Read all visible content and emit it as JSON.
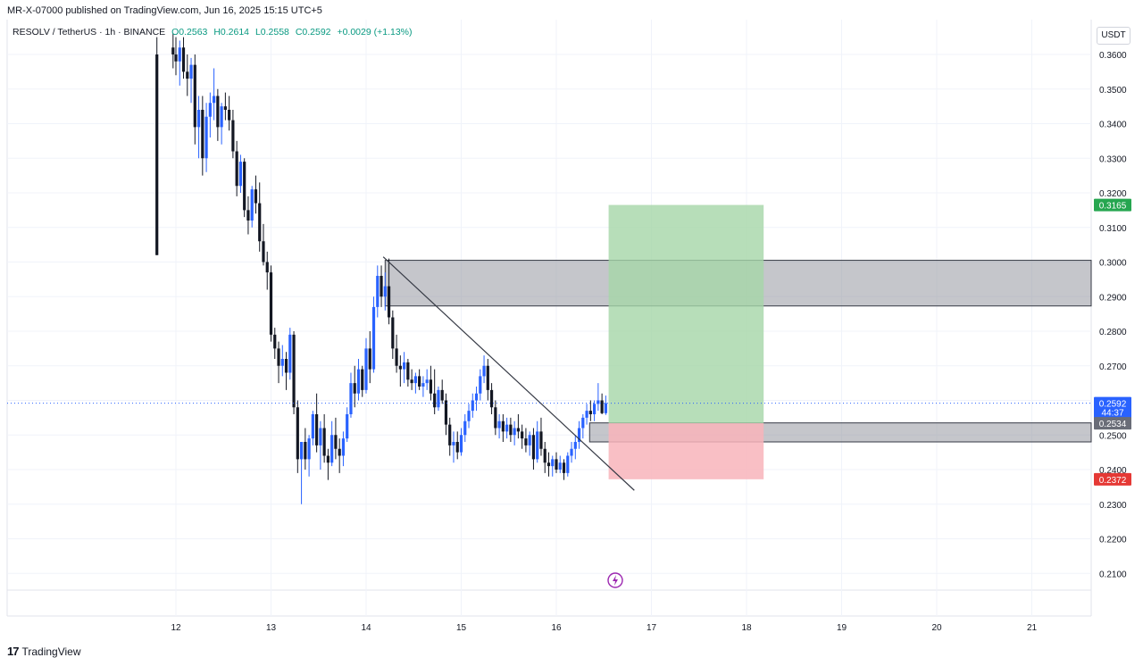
{
  "header": {
    "published": "MR-X-07000 published on TradingView.com, Jun 16, 2025 15:15 UTC+5",
    "symbol": "RESOLV / TetherUS · 1h · BINANCE",
    "open": "O0.2563",
    "high": "H0.2614",
    "low": "L0.2558",
    "close": "C0.2592",
    "change": "+0.0029 (+1.13%)",
    "currency": "USDT"
  },
  "footer": {
    "brand": "TradingView",
    "logo_glyph": "17"
  },
  "colors": {
    "up": "#2962ff",
    "down": "#131722",
    "target_zone": "#a5d6a7",
    "stop_zone": "#f8b4bb",
    "gray_zone": "#9598a1",
    "price_tag_blue": "#2962ff",
    "price_tag_green": "#26a650",
    "price_tag_red": "#e53935",
    "price_tag_gray": "#6a6d78"
  },
  "chart_data": {
    "type": "candlestick",
    "x_ticks": [
      "12",
      "13",
      "14",
      "15",
      "16",
      "17",
      "18",
      "19",
      "20",
      "21"
    ],
    "y_ticks": [
      "0.3600",
      "0.3500",
      "0.3400",
      "0.3300",
      "0.3200",
      "0.3100",
      "0.3000",
      "0.2900",
      "0.2800",
      "0.2700",
      "0.2600",
      "0.2500",
      "0.2400",
      "0.2300",
      "0.2200",
      "0.2100"
    ],
    "ylim": [
      0.205,
      0.364
    ],
    "price_labels": [
      {
        "value": 0.3165,
        "text": "0.3165",
        "kind": "target"
      },
      {
        "value": 0.2592,
        "text": "0.2592",
        "sub": "44:37",
        "kind": "last"
      },
      {
        "value": 0.2534,
        "text": "0.2534",
        "kind": "entry"
      },
      {
        "value": 0.2372,
        "text": "0.2372",
        "kind": "stop"
      }
    ],
    "zones": [
      {
        "name": "supply-zone",
        "from_day": 14.2,
        "to_day": 22.0,
        "top": 0.3005,
        "bottom": 0.2873
      },
      {
        "name": "entry-zone",
        "from_day": 16.35,
        "to_day": 22.0,
        "top": 0.2535,
        "bottom": 0.248
      }
    ],
    "position": {
      "from_day": 16.55,
      "to_day": 18.18,
      "target": 0.3165,
      "entry": 0.2534,
      "stop": 0.2372
    },
    "trendline": {
      "from": [
        14.18,
        0.3015
      ],
      "to": [
        16.82,
        0.234
      ]
    },
    "candles": [
      [
        11.8,
        0.36,
        0.365,
        0.302,
        0.302
      ],
      [
        11.97,
        0.362,
        0.366,
        0.356,
        0.36
      ],
      [
        12.0,
        0.36,
        0.365,
        0.354,
        0.358
      ],
      [
        12.04,
        0.358,
        0.364,
        0.351,
        0.362
      ],
      [
        12.08,
        0.362,
        0.365,
        0.353,
        0.355
      ],
      [
        12.12,
        0.355,
        0.36,
        0.348,
        0.353
      ],
      [
        12.16,
        0.353,
        0.359,
        0.346,
        0.357
      ],
      [
        12.2,
        0.357,
        0.36,
        0.334,
        0.339
      ],
      [
        12.24,
        0.339,
        0.348,
        0.33,
        0.344
      ],
      [
        12.28,
        0.344,
        0.348,
        0.325,
        0.33
      ],
      [
        12.32,
        0.33,
        0.346,
        0.326,
        0.342
      ],
      [
        12.36,
        0.342,
        0.349,
        0.336,
        0.346
      ],
      [
        12.4,
        0.346,
        0.356,
        0.341,
        0.348
      ],
      [
        12.44,
        0.348,
        0.35,
        0.335,
        0.339
      ],
      [
        12.48,
        0.339,
        0.346,
        0.334,
        0.345
      ],
      [
        12.52,
        0.345,
        0.349,
        0.341,
        0.344
      ],
      [
        12.56,
        0.344,
        0.348,
        0.338,
        0.341
      ],
      [
        12.6,
        0.341,
        0.344,
        0.33,
        0.332
      ],
      [
        12.64,
        0.332,
        0.335,
        0.319,
        0.322
      ],
      [
        12.68,
        0.322,
        0.331,
        0.32,
        0.329
      ],
      [
        12.72,
        0.329,
        0.33,
        0.313,
        0.315
      ],
      [
        12.76,
        0.315,
        0.319,
        0.308,
        0.312
      ],
      [
        12.8,
        0.312,
        0.322,
        0.31,
        0.321
      ],
      [
        12.84,
        0.321,
        0.325,
        0.314,
        0.317
      ],
      [
        12.88,
        0.317,
        0.323,
        0.303,
        0.306
      ],
      [
        12.92,
        0.306,
        0.311,
        0.299,
        0.3
      ],
      [
        12.96,
        0.3,
        0.303,
        0.292,
        0.297
      ],
      [
        13.0,
        0.297,
        0.299,
        0.277,
        0.279
      ],
      [
        13.04,
        0.279,
        0.281,
        0.272,
        0.275
      ],
      [
        13.08,
        0.275,
        0.277,
        0.265,
        0.27
      ],
      [
        13.12,
        0.27,
        0.276,
        0.267,
        0.272
      ],
      [
        13.16,
        0.272,
        0.274,
        0.263,
        0.268
      ],
      [
        13.2,
        0.268,
        0.281,
        0.266,
        0.279
      ],
      [
        13.24,
        0.279,
        0.28,
        0.256,
        0.258
      ],
      [
        13.28,
        0.258,
        0.26,
        0.239,
        0.243
      ],
      [
        13.32,
        0.243,
        0.248,
        0.23,
        0.248
      ],
      [
        13.36,
        0.248,
        0.252,
        0.24,
        0.243
      ],
      [
        13.4,
        0.243,
        0.25,
        0.238,
        0.249
      ],
      [
        13.44,
        0.249,
        0.257,
        0.247,
        0.256
      ],
      [
        13.48,
        0.256,
        0.262,
        0.245,
        0.247
      ],
      [
        13.52,
        0.247,
        0.254,
        0.24,
        0.252
      ],
      [
        13.56,
        0.252,
        0.256,
        0.242,
        0.244
      ],
      [
        13.6,
        0.244,
        0.246,
        0.237,
        0.242
      ],
      [
        13.64,
        0.242,
        0.254,
        0.241,
        0.25
      ],
      [
        13.68,
        0.25,
        0.255,
        0.243,
        0.246
      ],
      [
        13.72,
        0.246,
        0.249,
        0.239,
        0.244
      ],
      [
        13.76,
        0.244,
        0.251,
        0.241,
        0.249
      ],
      [
        13.8,
        0.249,
        0.258,
        0.248,
        0.256
      ],
      [
        13.84,
        0.256,
        0.268,
        0.255,
        0.265
      ],
      [
        13.88,
        0.265,
        0.27,
        0.258,
        0.262
      ],
      [
        13.92,
        0.262,
        0.272,
        0.26,
        0.269
      ],
      [
        13.96,
        0.269,
        0.27,
        0.261,
        0.263
      ],
      [
        14.0,
        0.263,
        0.278,
        0.262,
        0.275
      ],
      [
        14.04,
        0.275,
        0.28,
        0.265,
        0.269
      ],
      [
        14.08,
        0.269,
        0.29,
        0.268,
        0.287
      ],
      [
        14.12,
        0.287,
        0.299,
        0.284,
        0.296
      ],
      [
        14.16,
        0.296,
        0.299,
        0.287,
        0.29
      ],
      [
        14.2,
        0.29,
        0.297,
        0.286,
        0.293
      ],
      [
        14.24,
        0.293,
        0.301,
        0.282,
        0.284
      ],
      [
        14.28,
        0.284,
        0.286,
        0.272,
        0.275
      ],
      [
        14.32,
        0.275,
        0.279,
        0.268,
        0.27
      ],
      [
        14.36,
        0.27,
        0.273,
        0.264,
        0.269
      ],
      [
        14.4,
        0.269,
        0.274,
        0.265,
        0.271
      ],
      [
        14.44,
        0.271,
        0.272,
        0.264,
        0.266
      ],
      [
        14.48,
        0.266,
        0.269,
        0.263,
        0.265
      ],
      [
        14.52,
        0.265,
        0.268,
        0.262,
        0.267
      ],
      [
        14.56,
        0.267,
        0.269,
        0.263,
        0.264
      ],
      [
        14.6,
        0.264,
        0.267,
        0.261,
        0.265
      ],
      [
        14.64,
        0.265,
        0.269,
        0.263,
        0.266
      ],
      [
        14.68,
        0.266,
        0.27,
        0.26,
        0.262
      ],
      [
        14.72,
        0.262,
        0.269,
        0.256,
        0.258
      ],
      [
        14.76,
        0.258,
        0.264,
        0.257,
        0.263
      ],
      [
        14.8,
        0.263,
        0.266,
        0.259,
        0.26
      ],
      [
        14.84,
        0.26,
        0.262,
        0.25,
        0.253
      ],
      [
        14.88,
        0.253,
        0.255,
        0.244,
        0.247
      ],
      [
        14.92,
        0.247,
        0.251,
        0.242,
        0.248
      ],
      [
        14.96,
        0.248,
        0.251,
        0.243,
        0.245
      ],
      [
        15.0,
        0.245,
        0.252,
        0.244,
        0.25
      ],
      [
        15.04,
        0.25,
        0.256,
        0.248,
        0.254
      ],
      [
        15.08,
        0.254,
        0.259,
        0.252,
        0.257
      ],
      [
        15.12,
        0.257,
        0.262,
        0.255,
        0.26
      ],
      [
        15.16,
        0.26,
        0.264,
        0.257,
        0.262
      ],
      [
        15.2,
        0.262,
        0.269,
        0.26,
        0.267
      ],
      [
        15.24,
        0.267,
        0.273,
        0.265,
        0.27
      ],
      [
        15.28,
        0.27,
        0.272,
        0.26,
        0.263
      ],
      [
        15.32,
        0.263,
        0.265,
        0.256,
        0.258
      ],
      [
        15.36,
        0.258,
        0.26,
        0.25,
        0.252
      ],
      [
        15.4,
        0.252,
        0.256,
        0.249,
        0.254
      ],
      [
        15.44,
        0.254,
        0.256,
        0.248,
        0.251
      ],
      [
        15.48,
        0.251,
        0.255,
        0.249,
        0.253
      ],
      [
        15.52,
        0.253,
        0.255,
        0.248,
        0.25
      ],
      [
        15.56,
        0.25,
        0.254,
        0.247,
        0.252
      ],
      [
        15.6,
        0.252,
        0.256,
        0.249,
        0.251
      ],
      [
        15.64,
        0.251,
        0.253,
        0.246,
        0.249
      ],
      [
        15.68,
        0.249,
        0.252,
        0.245,
        0.247
      ],
      [
        15.72,
        0.247,
        0.251,
        0.244,
        0.25
      ],
      [
        15.76,
        0.25,
        0.252,
        0.24,
        0.243
      ],
      [
        15.8,
        0.243,
        0.254,
        0.242,
        0.251
      ],
      [
        15.84,
        0.251,
        0.255,
        0.244,
        0.246
      ],
      [
        15.88,
        0.246,
        0.248,
        0.239,
        0.242
      ],
      [
        15.92,
        0.242,
        0.245,
        0.238,
        0.241
      ],
      [
        15.96,
        0.241,
        0.244,
        0.238,
        0.243
      ],
      [
        16.0,
        0.243,
        0.245,
        0.239,
        0.24
      ],
      [
        16.04,
        0.24,
        0.244,
        0.239,
        0.242
      ],
      [
        16.08,
        0.242,
        0.243,
        0.237,
        0.239
      ],
      [
        16.12,
        0.239,
        0.245,
        0.238,
        0.244
      ],
      [
        16.16,
        0.244,
        0.248,
        0.242,
        0.246
      ],
      [
        16.2,
        0.246,
        0.25,
        0.243,
        0.248
      ],
      [
        16.24,
        0.248,
        0.254,
        0.246,
        0.252
      ],
      [
        16.28,
        0.252,
        0.256,
        0.249,
        0.255
      ],
      [
        16.32,
        0.255,
        0.259,
        0.253,
        0.257
      ],
      [
        16.36,
        0.257,
        0.26,
        0.254,
        0.256
      ],
      [
        16.4,
        0.256,
        0.26,
        0.254,
        0.259
      ],
      [
        16.44,
        0.259,
        0.265,
        0.257,
        0.26
      ],
      [
        16.48,
        0.26,
        0.262,
        0.256,
        0.2563
      ],
      [
        16.52,
        0.2563,
        0.2614,
        0.2558,
        0.2592
      ]
    ]
  }
}
